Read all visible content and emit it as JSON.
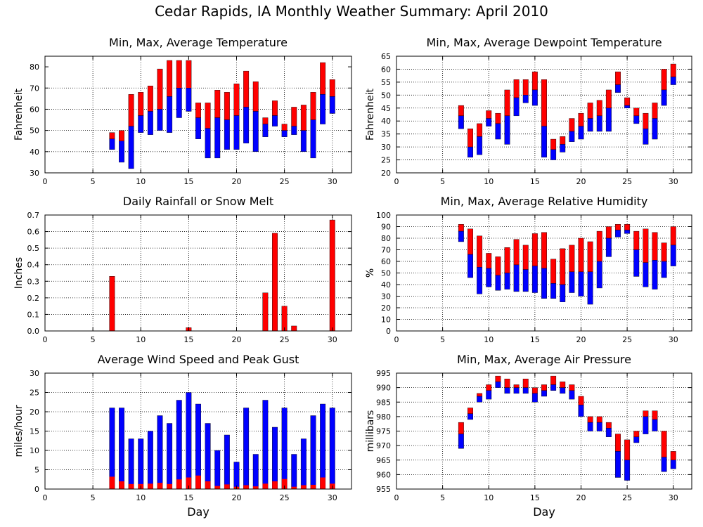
{
  "figure": {
    "title": "Cedar Rapids, IA Monthly Weather Summary: April 2010"
  },
  "colors": {
    "upper": "#ff0000",
    "lower": "#0000ff",
    "grid": "#000000",
    "bg": "#ffffff"
  },
  "chart_data": [
    {
      "id": "temperature",
      "type": "bar",
      "style": "floating-range-with-mean",
      "title": "Min, Max, Average Temperature",
      "xlabel": "",
      "ylabel": "Fahrenheit",
      "xlim": [
        0,
        32
      ],
      "ylim": [
        30,
        85
      ],
      "xticks": [
        0,
        5,
        10,
        15,
        20,
        25,
        30
      ],
      "yticks": [
        30,
        40,
        50,
        60,
        70,
        80
      ],
      "grid": true,
      "days": [
        7,
        8,
        9,
        10,
        11,
        12,
        13,
        14,
        15,
        16,
        17,
        18,
        19,
        20,
        21,
        22,
        23,
        24,
        25,
        26,
        27,
        28,
        29,
        30
      ],
      "min": [
        41,
        35,
        32,
        49,
        48,
        50,
        49,
        56,
        59,
        46,
        37,
        37,
        41,
        41,
        44,
        40,
        47,
        52,
        47,
        48,
        40,
        37,
        53,
        58
      ],
      "mean": [
        46,
        45,
        52,
        57,
        59,
        60,
        66,
        70,
        70,
        56,
        51,
        56,
        55,
        57,
        61,
        59,
        53,
        57,
        50,
        52,
        50,
        55,
        67,
        66
      ],
      "max": [
        49,
        50,
        67,
        68,
        71,
        79,
        83,
        83,
        83,
        63,
        63,
        69,
        68,
        72,
        78,
        73,
        56,
        64,
        53,
        61,
        62,
        68,
        82,
        74
      ]
    },
    {
      "id": "dewpoint",
      "type": "bar",
      "style": "floating-range-with-mean",
      "title": "Min, Max, Average Dewpoint Temperature",
      "xlabel": "",
      "ylabel": "Fahrenheit",
      "xlim": [
        0,
        32
      ],
      "ylim": [
        20,
        65
      ],
      "xticks": [
        0,
        5,
        10,
        15,
        20,
        25,
        30
      ],
      "yticks": [
        20,
        25,
        30,
        35,
        40,
        45,
        50,
        55,
        60,
        65
      ],
      "grid": true,
      "days": [
        7,
        8,
        9,
        10,
        11,
        12,
        13,
        14,
        15,
        16,
        17,
        18,
        19,
        20,
        21,
        22,
        23,
        24,
        25,
        26,
        27,
        28,
        29,
        30
      ],
      "min": [
        37,
        26,
        27,
        38,
        33,
        31,
        42,
        47,
        46,
        26,
        25,
        28,
        32,
        33,
        36,
        36,
        36,
        51,
        45,
        39,
        31,
        33,
        46,
        54
      ],
      "mean": [
        42,
        30,
        34,
        41,
        39,
        42,
        49,
        50,
        52,
        38,
        29,
        31,
        36,
        38,
        41,
        42,
        45,
        54,
        46,
        42,
        37,
        41,
        52,
        57
      ],
      "max": [
        46,
        37,
        39,
        44,
        43,
        52,
        56,
        56,
        59,
        56,
        33,
        34,
        41,
        43,
        47,
        48,
        52,
        59,
        49,
        45,
        43,
        47,
        60,
        62
      ]
    },
    {
      "id": "rainfall",
      "type": "bar",
      "title": "Daily Rainfall or Snow Melt",
      "xlabel": "",
      "ylabel": "Inches",
      "xlim": [
        0,
        32
      ],
      "ylim": [
        0,
        0.7
      ],
      "xticks": [
        0,
        5,
        10,
        15,
        20,
        25,
        30
      ],
      "yticks": [
        0.0,
        0.1,
        0.2,
        0.3,
        0.4,
        0.5,
        0.6,
        0.7
      ],
      "ytick_labels": [
        "0.0",
        "0.1",
        "0.2",
        "0.3",
        "0.4",
        "0.5",
        "0.6",
        "0.7"
      ],
      "grid": true,
      "days": [
        7,
        15,
        23,
        24,
        25,
        26,
        30
      ],
      "values": [
        0.33,
        0.02,
        0.23,
        0.59,
        0.15,
        0.03,
        0.67
      ]
    },
    {
      "id": "humidity",
      "type": "bar",
      "style": "floating-range-with-mean",
      "title": "Min, Max, Average Relative Humidity",
      "xlabel": "",
      "ylabel": "%",
      "xlim": [
        0,
        32
      ],
      "ylim": [
        0,
        100
      ],
      "xticks": [
        0,
        5,
        10,
        15,
        20,
        25,
        30
      ],
      "yticks": [
        0,
        10,
        20,
        30,
        40,
        50,
        60,
        70,
        80,
        90,
        100
      ],
      "grid": true,
      "days": [
        7,
        8,
        9,
        10,
        11,
        12,
        13,
        14,
        15,
        16,
        17,
        18,
        19,
        20,
        21,
        22,
        23,
        24,
        25,
        26,
        27,
        28,
        29,
        30
      ],
      "min": [
        77,
        46,
        32,
        38,
        35,
        36,
        34,
        34,
        33,
        28,
        28,
        25,
        33,
        30,
        23,
        37,
        64,
        81,
        84,
        47,
        38,
        36,
        46,
        56
      ],
      "mean": [
        86,
        66,
        55,
        54,
        48,
        50,
        57,
        53,
        56,
        54,
        41,
        40,
        51,
        51,
        51,
        60,
        80,
        87,
        87,
        70,
        59,
        61,
        60,
        74
      ],
      "max": [
        92,
        88,
        82,
        67,
        64,
        72,
        79,
        74,
        84,
        85,
        62,
        71,
        74,
        80,
        77,
        86,
        90,
        92,
        92,
        86,
        88,
        85,
        76,
        90
      ]
    },
    {
      "id": "wind",
      "type": "bar",
      "style": "overlaid",
      "title": "Average Wind Speed and Peak Gust",
      "xlabel": "Day",
      "ylabel": "miles/hour",
      "xlim": [
        0,
        32
      ],
      "ylim": [
        0,
        30
      ],
      "xticks": [
        0,
        5,
        10,
        15,
        20,
        25,
        30
      ],
      "yticks": [
        0,
        5,
        10,
        15,
        20,
        25,
        30
      ],
      "grid": true,
      "days": [
        7,
        8,
        9,
        10,
        11,
        12,
        13,
        14,
        15,
        16,
        17,
        18,
        19,
        20,
        21,
        22,
        23,
        24,
        25,
        26,
        27,
        28,
        29,
        30
      ],
      "gust": [
        21,
        21,
        13,
        13,
        15,
        19,
        17,
        23,
        25,
        22,
        17,
        10,
        14,
        7,
        21,
        9,
        23,
        16,
        21,
        9,
        13,
        19,
        22,
        21
      ],
      "average": [
        3.2,
        2,
        1.3,
        1.3,
        1.4,
        1.6,
        1.3,
        2.5,
        3,
        3.5,
        2,
        0.8,
        1.2,
        0.6,
        1,
        0.7,
        1.4,
        2,
        2.6,
        0.6,
        1,
        1.1,
        3,
        1.4
      ]
    },
    {
      "id": "pressure",
      "type": "bar",
      "style": "floating-range-with-mean",
      "title": "Min, Max, Average Air Pressure",
      "xlabel": "Day",
      "ylabel": "millibars",
      "xlim": [
        0,
        32
      ],
      "ylim": [
        955,
        995
      ],
      "xticks": [
        0,
        5,
        10,
        15,
        20,
        25,
        30
      ],
      "yticks": [
        955,
        960,
        965,
        970,
        975,
        980,
        985,
        990,
        995
      ],
      "grid": true,
      "days": [
        7,
        8,
        9,
        10,
        11,
        12,
        13,
        14,
        15,
        16,
        17,
        18,
        19,
        20,
        21,
        22,
        23,
        24,
        25,
        26,
        27,
        28,
        29,
        30
      ],
      "min": [
        969,
        979,
        985,
        986,
        990,
        988,
        988,
        988,
        985,
        987,
        989,
        988,
        986,
        980,
        975,
        975,
        973,
        959,
        958,
        971,
        974,
        975,
        961,
        962
      ],
      "mean": [
        974,
        981,
        987,
        989,
        992,
        990,
        990,
        990,
        988,
        989,
        991,
        990,
        989,
        984,
        978,
        978,
        976,
        968,
        965,
        973,
        980,
        979,
        966,
        965
      ],
      "max": [
        978,
        983,
        988,
        991,
        994,
        993,
        991,
        993,
        990,
        991,
        994,
        992,
        991,
        987,
        980,
        980,
        978,
        974,
        972,
        975,
        982,
        982,
        975,
        968
      ]
    }
  ]
}
